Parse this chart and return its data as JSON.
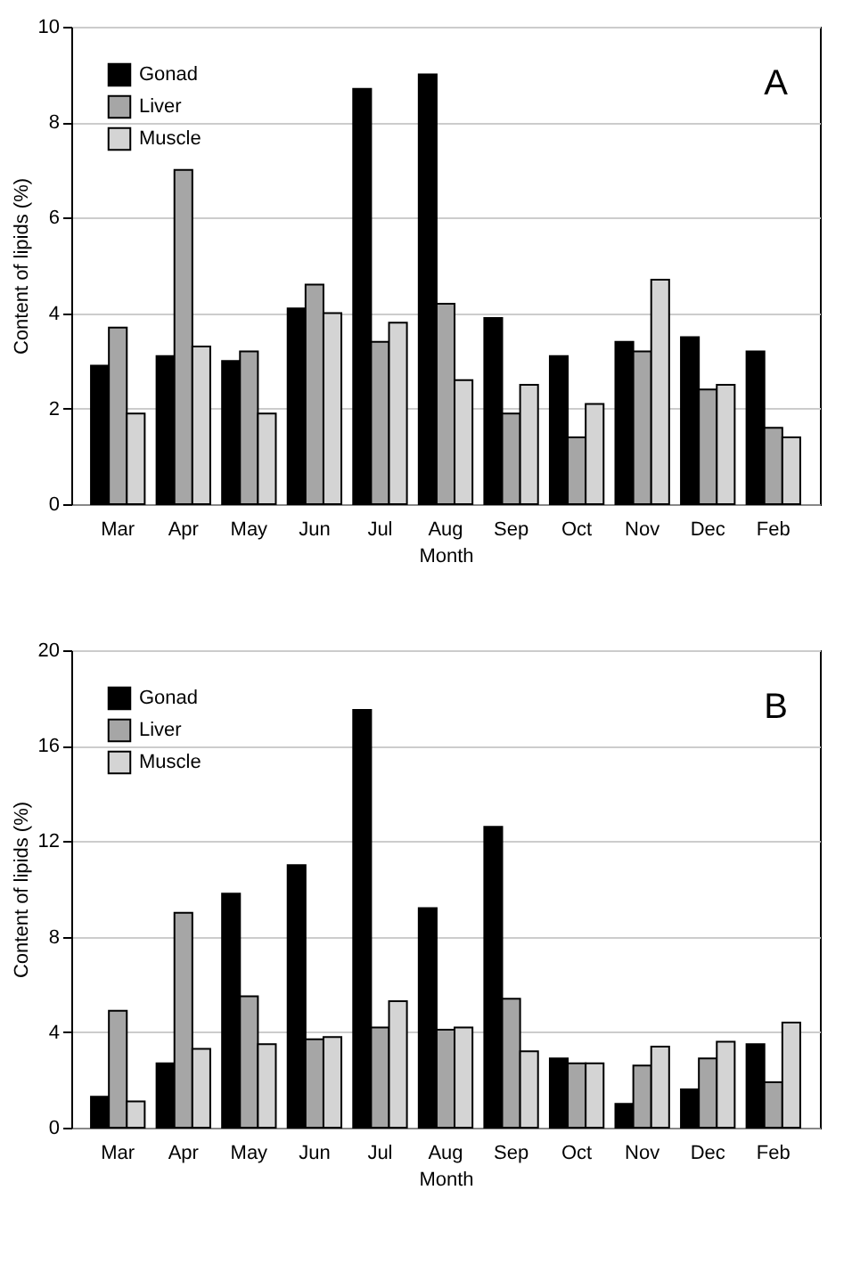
{
  "chart_data": [
    {
      "type": "bar",
      "annotations": [
        "A"
      ],
      "xlabel": "Month",
      "ylabel": "Content of lipids (%)",
      "categories": [
        "Mar",
        "Apr",
        "May",
        "Jun",
        "Jul",
        "Aug",
        "Sep",
        "Oct",
        "Nov",
        "Dec",
        "Feb"
      ],
      "series": [
        {
          "name": "Gonad",
          "color": "#000000",
          "values": [
            2.9,
            3.1,
            3.0,
            4.1,
            8.7,
            9.0,
            3.9,
            3.1,
            3.4,
            3.5,
            3.2
          ]
        },
        {
          "name": "Liver",
          "color": "#a6a6a6",
          "values": [
            3.7,
            7.0,
            3.2,
            4.6,
            3.4,
            4.2,
            1.9,
            1.4,
            3.2,
            2.4,
            1.6
          ]
        },
        {
          "name": "Muscle",
          "color": "#d4d4d4",
          "values": [
            1.9,
            3.3,
            1.9,
            4.0,
            3.8,
            2.6,
            2.5,
            2.1,
            4.7,
            2.5,
            1.4
          ]
        }
      ],
      "ylim": [
        0,
        10
      ],
      "yticks": [
        0,
        2,
        4,
        6,
        8,
        10
      ],
      "grid": "y",
      "legend": "top left"
    },
    {
      "type": "bar",
      "annotations": [
        "B"
      ],
      "xlabel": "Month",
      "ylabel": "Content of lipids (%)",
      "categories": [
        "Mar",
        "Apr",
        "May",
        "Jun",
        "Jul",
        "Aug",
        "Sep",
        "Oct",
        "Nov",
        "Dec",
        "Feb"
      ],
      "series": [
        {
          "name": "Gonad",
          "color": "#000000",
          "values": [
            1.3,
            2.7,
            9.8,
            11.0,
            17.5,
            9.2,
            12.6,
            2.9,
            1.0,
            1.6,
            3.5
          ]
        },
        {
          "name": "Liver",
          "color": "#a6a6a6",
          "values": [
            4.9,
            9.0,
            5.5,
            3.7,
            4.2,
            4.1,
            5.4,
            2.7,
            2.6,
            2.9,
            1.9
          ]
        },
        {
          "name": "Muscle",
          "color": "#d4d4d4",
          "values": [
            1.1,
            3.3,
            3.5,
            3.8,
            5.3,
            4.2,
            3.2,
            2.7,
            3.4,
            3.6,
            4.4
          ]
        }
      ],
      "ylim": [
        0,
        20
      ],
      "yticks": [
        0,
        4,
        8,
        12,
        16,
        20
      ],
      "grid": "y",
      "legend": "top left"
    }
  ]
}
